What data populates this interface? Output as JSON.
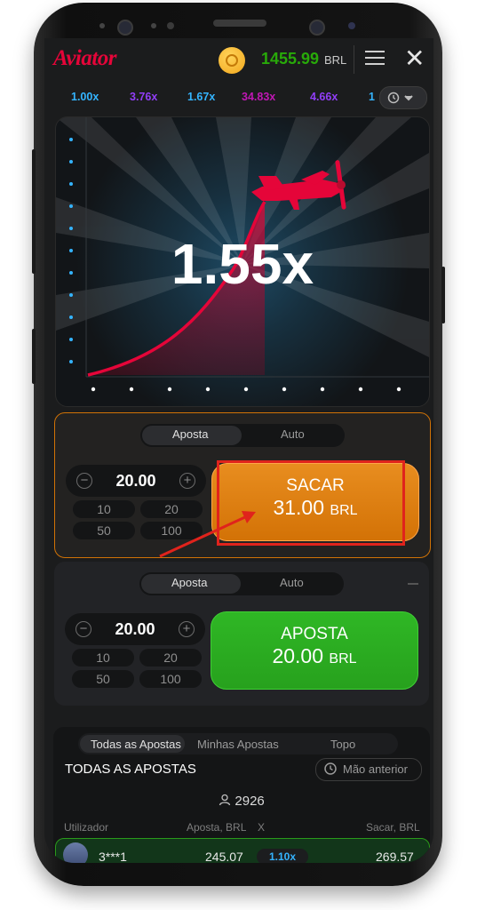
{
  "header": {
    "logo": "Aviator",
    "balance": "1455.99",
    "currency": "BRL",
    "menu_icon": "hamburger-icon",
    "close_icon": "close-icon"
  },
  "history": {
    "multipliers": [
      {
        "value": "1.00x",
        "color": "#34b4ff"
      },
      {
        "value": "3.76x",
        "color": "#913ef8"
      },
      {
        "value": "1.67x",
        "color": "#34b4ff"
      },
      {
        "value": "34.83x",
        "color": "#c017b4"
      },
      {
        "value": "4.66x",
        "color": "#913ef8"
      },
      {
        "value": "1",
        "color": "#34b4ff"
      }
    ],
    "toggle_icon": "history-clock-icon"
  },
  "game": {
    "multiplier": "1.55x",
    "accent_color": "#e50539"
  },
  "panel1": {
    "tab_bet": "Aposta",
    "tab_auto": "Auto",
    "amount": "20.00",
    "chips": [
      "10",
      "20",
      "50",
      "100"
    ],
    "button_line1": "SACAR",
    "button_amount": "31.00",
    "button_currency": "BRL"
  },
  "panel2": {
    "tab_bet": "Aposta",
    "tab_auto": "Auto",
    "amount": "20.00",
    "chips": [
      "10",
      "20",
      "50",
      "100"
    ],
    "button_line1": "APOSTA",
    "button_amount": "20.00",
    "button_currency": "BRL"
  },
  "bets": {
    "tabs": [
      "Todas as Apostas",
      "Minhas Apostas",
      "Topo"
    ],
    "title": "TODAS AS APOSTAS",
    "prev_button": "Mão anterior",
    "count": "2926",
    "columns": {
      "user": "Utilizador",
      "bet": "Aposta, BRL",
      "x": "X",
      "cashout": "Sacar, BRL"
    },
    "rows": [
      {
        "user": "3***1",
        "bet": "245.07",
        "x": "1.10x",
        "cashout": "269.57"
      }
    ]
  }
}
